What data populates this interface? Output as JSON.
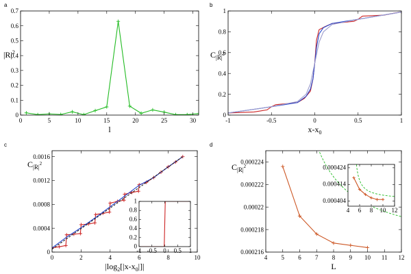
{
  "chart_data": [
    {
      "panel": "a",
      "type": "line",
      "xlabel": "l",
      "ylabel": "|R|²",
      "xlim": [
        0,
        31
      ],
      "ylim": [
        0,
        0.7
      ],
      "xticks": [
        0,
        5,
        10,
        15,
        20,
        25,
        30
      ],
      "yticks": [
        0,
        0.1,
        0.2,
        0.3,
        0.4,
        0.5,
        0.6,
        0.7
      ],
      "series": [
        {
          "color": "#22bb22",
          "marker": "+",
          "x": [
            1,
            3,
            5,
            7,
            9,
            11,
            13,
            15,
            17,
            19,
            21,
            23,
            25,
            27,
            29,
            31
          ],
          "y": [
            0.015,
            0.003,
            0.008,
            0.004,
            0.022,
            0.003,
            0.03,
            0.055,
            0.63,
            0.06,
            0.012,
            0.035,
            0.02,
            0.003,
            0.003,
            0.01
          ]
        }
      ]
    },
    {
      "panel": "b",
      "type": "line",
      "xlabel": "x-x0",
      "ylabel": "C|R|²",
      "xlim": [
        -1,
        1
      ],
      "ylim": [
        0,
        1
      ],
      "xticks": [
        -1,
        -0.5,
        0,
        0.5,
        1
      ],
      "yticks": [
        0,
        0.2,
        0.4,
        0.6,
        0.8,
        1
      ],
      "series": [
        {
          "color": "#cc2222",
          "x": [
            -1,
            -0.7,
            -0.55,
            -0.5,
            -0.45,
            -0.2,
            -0.12,
            -0.05,
            -0.02,
            0,
            0.02,
            0.05,
            0.12,
            0.2,
            0.45,
            0.5,
            0.55,
            0.8,
            0.92,
            1
          ],
          "y": [
            0.02,
            0.03,
            0.05,
            0.08,
            0.1,
            0.12,
            0.16,
            0.23,
            0.35,
            0.5,
            0.72,
            0.82,
            0.85,
            0.88,
            0.9,
            0.92,
            0.95,
            0.96,
            0.98,
            0.99
          ]
        },
        {
          "color": "#2244cc",
          "x": [
            -1,
            -0.5,
            -0.2,
            -0.1,
            -0.05,
            -0.02,
            0,
            0.02,
            0.05,
            0.1,
            0.2,
            0.5,
            1
          ],
          "y": [
            0.02,
            0.08,
            0.12,
            0.18,
            0.25,
            0.35,
            0.5,
            0.65,
            0.78,
            0.84,
            0.88,
            0.92,
            0.99
          ]
        },
        {
          "color": "#9999cc",
          "x": [
            -1,
            -0.5,
            -0.2,
            -0.1,
            -0.05,
            0,
            0.05,
            0.1,
            0.2,
            0.5,
            1
          ],
          "y": [
            0.02,
            0.08,
            0.13,
            0.2,
            0.3,
            0.5,
            0.7,
            0.8,
            0.87,
            0.92,
            0.99
          ]
        }
      ]
    },
    {
      "panel": "c",
      "type": "line",
      "xlabel": "|log₂[|x-x0|]|",
      "ylabel": "C|R|²",
      "xlim": [
        0,
        10
      ],
      "ylim": [
        0,
        0.0017
      ],
      "xticks": [
        0,
        2,
        4,
        6,
        8,
        10
      ],
      "yticks": [
        0,
        0.0004,
        0.0008,
        0.0012,
        0.0016
      ],
      "ytick_labels": [
        "0",
        "0.0004",
        "0.0008",
        "0.0012",
        "0.0016"
      ],
      "series": [
        {
          "color": "#cc2222",
          "marker": "+",
          "x": [
            0,
            0.5,
            0.95,
            1,
            1.5,
            1.95,
            2,
            2.5,
            2.95,
            3,
            3.5,
            3.95,
            4,
            4.5,
            4.95,
            5,
            5.5,
            5.95,
            6,
            6.5,
            7,
            7.5,
            8,
            8.5,
            9
          ],
          "y": [
            7e-05,
            9e-05,
            0.00011,
            0.00029,
            0.0003,
            0.00031,
            0.00046,
            0.00047,
            0.00049,
            0.00063,
            0.00065,
            0.00067,
            0.00082,
            0.00085,
            0.00087,
            0.00097,
            0.001,
            0.00102,
            0.00113,
            0.00117,
            0.00125,
            0.00134,
            0.00143,
            0.00151,
            0.0016
          ]
        },
        {
          "color": "#2244cc",
          "x": [
            0,
            1,
            2,
            3,
            4,
            5,
            6,
            7,
            8,
            9
          ],
          "y": [
            7e-05,
            0.00025,
            0.00041,
            0.00058,
            0.00076,
            0.00094,
            0.00112,
            0.00125,
            0.00143,
            0.0016
          ]
        },
        {
          "color": "#222222",
          "dashed": true,
          "x": [
            0,
            9
          ],
          "y": [
            5e-05,
            0.0016
          ]
        }
      ]
    },
    {
      "panel": "c-inset",
      "type": "line",
      "xlim": [
        -1,
        1
      ],
      "ylim": [
        0,
        1
      ],
      "xticks": [
        -1,
        -0.5,
        0,
        0.5,
        1
      ],
      "yticks": [
        0,
        0.2,
        0.4,
        0.6,
        0.8,
        1
      ],
      "series": [
        {
          "color": "#cc2222",
          "x": [
            -1,
            -0.02,
            0,
            0.02,
            1
          ],
          "y": [
            0,
            0,
            0.5,
            1,
            1
          ]
        }
      ]
    },
    {
      "panel": "d",
      "type": "line",
      "xlabel": "L",
      "ylabel": "C|R|²",
      "xlim": [
        4,
        12
      ],
      "ylim": [
        0.000216,
        0.000225
      ],
      "xticks": [
        4,
        5,
        6,
        7,
        8,
        9,
        10,
        11,
        12
      ],
      "yticks": [
        0.000216,
        0.000218,
        0.00022,
        0.000222,
        0.000224
      ],
      "ytick_labels": [
        "0.000216",
        "0.000218",
        "0.00022",
        "0.000222",
        "0.000224"
      ],
      "series": [
        {
          "color": "#cc5522",
          "marker": "+",
          "x": [
            5,
            6,
            7,
            8,
            9,
            10
          ],
          "y": [
            0.0002236,
            0.0002192,
            0.0002176,
            0.0002168,
            0.0002166,
            0.0002164
          ]
        },
        {
          "color": "#22bb22",
          "dashed": true,
          "fit": {
            "a": 0.0002163,
            "b": 2.06e-05,
            "c": 1.0,
            "x0": 4.77
          }
        }
      ]
    },
    {
      "panel": "d-inset",
      "type": "line",
      "xlim": [
        4,
        12
      ],
      "ylim": [
        0.000401,
        0.000426
      ],
      "xticks": [
        4,
        6,
        8,
        10,
        12
      ],
      "yticks": [
        0.000404,
        0.000414,
        0.000424
      ],
      "ytick_labels": [
        "0.000404",
        "0.000414",
        "0.000424"
      ],
      "series": [
        {
          "color": "#cc5522",
          "marker": "+",
          "x": [
            5,
            6,
            7,
            8,
            9,
            10
          ],
          "y": [
            0.000418,
            0.000411,
            0.000408,
            0.000406,
            0.000405,
            0.000405
          ]
        },
        {
          "color": "#22bb22",
          "dashed": true,
          "fit": {
            "a": 0.0004045,
            "b": 1.36e-05,
            "c": 0.9,
            "x0": 4.85
          }
        }
      ]
    }
  ]
}
